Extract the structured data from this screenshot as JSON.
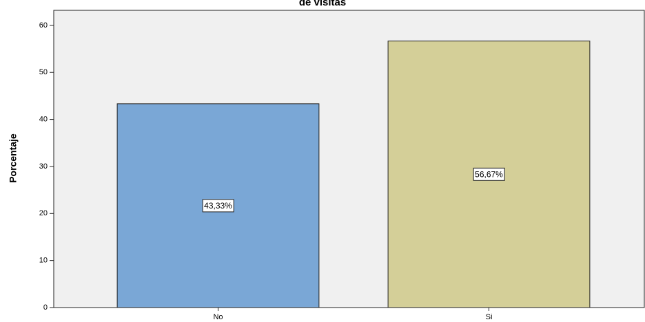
{
  "chart_data": {
    "type": "bar",
    "title": "de visitas",
    "y_label": "Porcentaje",
    "categories": [
      "No",
      "Si"
    ],
    "values": [
      43.33,
      56.67
    ],
    "value_labels": [
      "43,33%",
      "56,67%"
    ],
    "colors": [
      "#7aa7d6",
      "#d4cf98"
    ],
    "ylim": [
      0,
      63.2
    ],
    "yticks": [
      0,
      10,
      20,
      30,
      40,
      50,
      60
    ],
    "grid": false
  }
}
